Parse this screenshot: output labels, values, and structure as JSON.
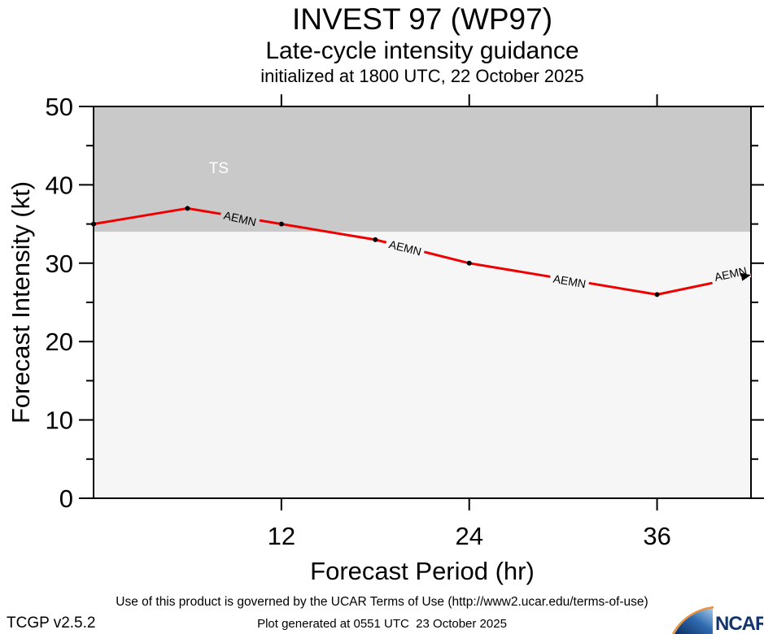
{
  "header": {
    "title": "INVEST 97 (WP97)",
    "subtitle": "Late-cycle intensity guidance",
    "init_line": "initialized at 1800 UTC, 22 October 2025"
  },
  "footer": {
    "terms": "Use of this product is governed by the UCAR Terms of Use (http://www2.ucar.edu/terms-of-use)",
    "version": "TCGP v2.5.2",
    "generated": "Plot generated at 0551 UTC  23 October 2025",
    "logo_text": "NCAR"
  },
  "colors": {
    "series_red": "#ee0000",
    "ts_band_gray": "#c9c9c9",
    "below_ts_gray": "#f6f6f6",
    "axis_black": "#000000",
    "ts_label_white": "#ffffff",
    "ncar_navy": "#13356b",
    "ncar_orange": "#e6923c"
  },
  "chart_data": {
    "type": "line",
    "title": "INVEST 97 (WP97)",
    "subtitle": "Late-cycle intensity guidance",
    "init_line": "initialized at 1800 UTC, 22 October 2025",
    "xlabel": "Forecast Period (hr)",
    "ylabel": "Forecast Intensity (kt)",
    "xlim": [
      0,
      42
    ],
    "ylim": [
      0,
      50
    ],
    "x_major_ticks": [
      12,
      24,
      36
    ],
    "y_major_ticks": [
      0,
      10,
      20,
      30,
      40,
      50
    ],
    "y_minor_ticks": [
      5,
      15,
      25,
      35,
      45
    ],
    "grid": false,
    "threshold_regions": [
      {
        "label": "TS",
        "from": 34,
        "to": 50,
        "color": "#c9c9c9",
        "label_color": "#ffffff",
        "label_pos": {
          "hr": 8,
          "kt": 42
        }
      },
      {
        "label": "",
        "from": 0,
        "to": 34,
        "color": "#f6f6f6"
      }
    ],
    "series": [
      {
        "name": "AEMN",
        "color": "#ee0000",
        "x": [
          0,
          6,
          12,
          18,
          24,
          30,
          36,
          42
        ],
        "values": [
          35,
          37,
          35,
          33,
          30,
          28,
          26,
          28.5
        ],
        "labels": [
          {
            "hr": 9.35,
            "kt": 35.7,
            "angle": 13
          },
          {
            "hr": 19.9,
            "kt": 31.95,
            "angle": 14
          },
          {
            "hr": 30.4,
            "kt": 27.65,
            "angle": 10
          },
          {
            "hr": 40.7,
            "kt": 28.6,
            "angle": -12
          }
        ]
      }
    ],
    "end_arrow": true
  }
}
